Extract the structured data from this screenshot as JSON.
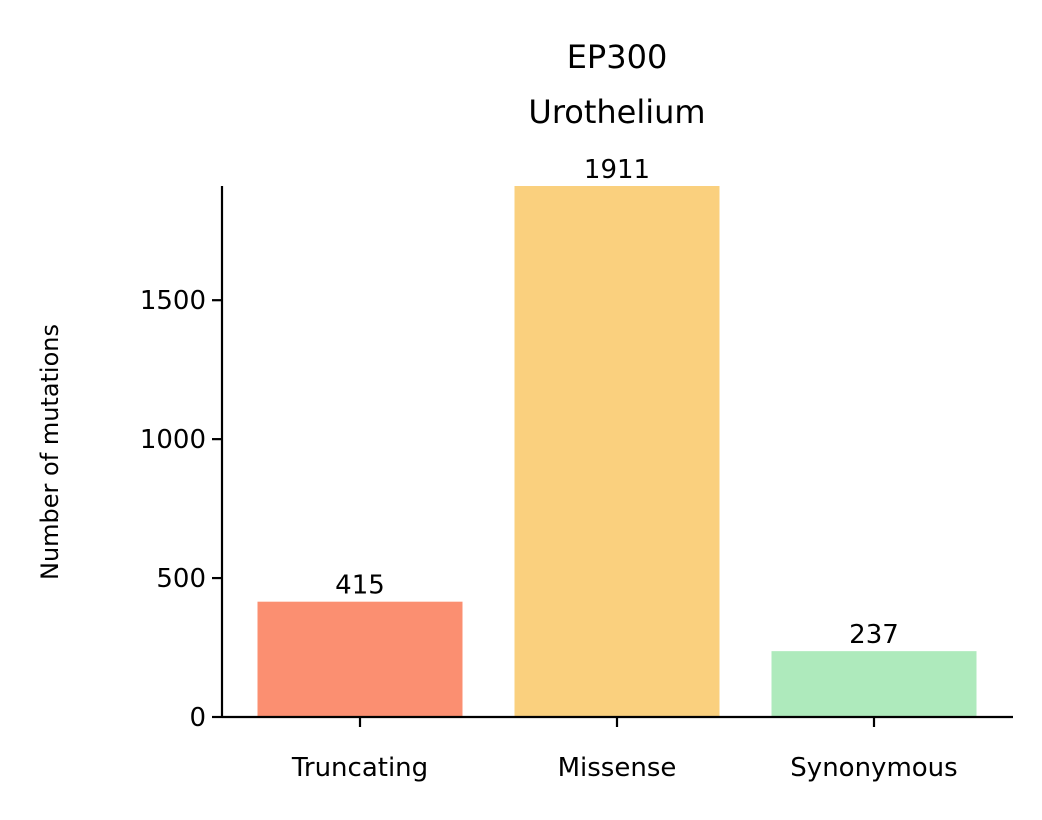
{
  "chart_data": {
    "type": "bar",
    "title_lines": [
      "EP300",
      "Urothelium"
    ],
    "xlabel": "",
    "ylabel": "Number of mutations",
    "categories": [
      "Truncating",
      "Missense",
      "Synonymous"
    ],
    "values": [
      415,
      1911,
      237
    ],
    "value_labels": [
      "415",
      "1911",
      "237"
    ],
    "colors": [
      "#fb8f71",
      "#fad07e",
      "#aeeabc"
    ],
    "ylim": [
      0,
      1911
    ],
    "yticks": [
      0,
      500,
      1000,
      1500
    ],
    "ytick_labels": [
      "0",
      "500",
      "1000",
      "1500"
    ],
    "grid": false,
    "legend": "none"
  }
}
